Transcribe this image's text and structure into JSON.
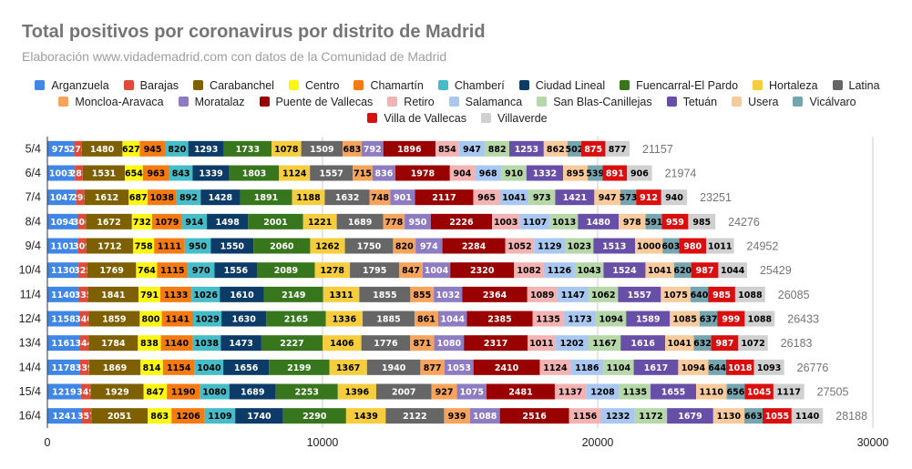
{
  "title": "Total positivos por coronavirus por distrito de Madrid",
  "subtitle": "Elaboración www.vidademadrid.com con datos de la Comunidad de Madrid",
  "chart_data": {
    "type": "bar",
    "orientation": "horizontal",
    "stacked": true,
    "title": "Total positivos por coronavirus por distrito de Madrid",
    "subtitle": "Elaboración www.vidademadrid.com con datos de la Comunidad de Madrid",
    "xlim": [
      0,
      30000
    ],
    "x_ticks": [
      0,
      10000,
      20000,
      30000
    ],
    "grid": true,
    "legend_position": "top",
    "categories": [
      "5/4",
      "6/4",
      "7/4",
      "8/4",
      "9/4",
      "10/4",
      "11/4",
      "12/4",
      "13/4",
      "14/4",
      "15/4",
      "16/4"
    ],
    "totals": [
      21157,
      21974,
      23251,
      24276,
      24952,
      25429,
      26085,
      26433,
      26183,
      26776,
      27505,
      28188
    ],
    "series": [
      {
        "name": "Arganzuela",
        "color": "#3f86e6",
        "label_color": "#ffffff",
        "values": [
          975,
          1003,
          1047,
          1094,
          1101,
          1130,
          1140,
          1158,
          1161,
          1178,
          1219,
          1241
        ]
      },
      {
        "name": "Barajas",
        "color": "#e04a3a",
        "label_color": "#ffffff",
        "values": [
          274,
          283,
          298,
          306,
          309,
          325,
          335,
          340,
          344,
          339,
          349,
          357
        ]
      },
      {
        "name": "Carabanchel",
        "color": "#7f6000",
        "label_color": "#ffffff",
        "values": [
          1480,
          1531,
          1612,
          1672,
          1712,
          1769,
          1841,
          1859,
          1784,
          1869,
          1929,
          2051
        ]
      },
      {
        "name": "Centro",
        "color": "#fbf712",
        "label_color": "#000000",
        "values": [
          627,
          654,
          687,
          732,
          758,
          764,
          791,
          800,
          838,
          814,
          847,
          863
        ]
      },
      {
        "name": "Chamartín",
        "color": "#f57a12",
        "label_color": "#000000",
        "values": [
          945,
          963,
          1038,
          1079,
          1111,
          1115,
          1133,
          1141,
          1140,
          1154,
          1190,
          1206
        ]
      },
      {
        "name": "Chamberí",
        "color": "#45bcc7",
        "label_color": "#000000",
        "values": [
          820,
          843,
          892,
          914,
          950,
          970,
          1026,
          1029,
          1038,
          1040,
          1080,
          1109
        ]
      },
      {
        "name": "Ciudad Lineal",
        "color": "#0b3b66",
        "label_color": "#ffffff",
        "values": [
          1293,
          1339,
          1428,
          1498,
          1550,
          1556,
          1610,
          1630,
          1473,
          1656,
          1689,
          1740
        ]
      },
      {
        "name": "Fuencarral-El Pardo",
        "color": "#38761d",
        "label_color": "#ffffff",
        "values": [
          1733,
          1803,
          1891,
          2001,
          2060,
          2089,
          2149,
          2165,
          2227,
          2199,
          2253,
          2290
        ]
      },
      {
        "name": "Hortaleza",
        "color": "#f5cd3d",
        "label_color": "#000000",
        "values": [
          1078,
          1124,
          1188,
          1221,
          1262,
          1278,
          1311,
          1336,
          1406,
          1367,
          1396,
          1439
        ]
      },
      {
        "name": "Latina",
        "color": "#666666",
        "label_color": "#ffffff",
        "values": [
          1509,
          1557,
          1632,
          1689,
          1750,
          1795,
          1855,
          1885,
          1776,
          1940,
          2007,
          2122
        ]
      },
      {
        "name": "Moncloa-Aravaca",
        "color": "#f6a35c",
        "label_color": "#000000",
        "values": [
          683,
          715,
          748,
          778,
          820,
          847,
          855,
          861,
          871,
          877,
          927,
          939
        ]
      },
      {
        "name": "Moratalaz",
        "color": "#8e7cc3",
        "label_color": "#ffffff",
        "values": [
          792,
          836,
          901,
          950,
          974,
          1004,
          1032,
          1044,
          1080,
          1053,
          1075,
          1088
        ]
      },
      {
        "name": "Puente de Vallecas",
        "color": "#990000",
        "label_color": "#ffffff",
        "values": [
          1896,
          1978,
          2117,
          2226,
          2284,
          2320,
          2364,
          2385,
          2317,
          2410,
          2481,
          2516
        ]
      },
      {
        "name": "Retiro",
        "color": "#f4b3b3",
        "label_color": "#000000",
        "values": [
          854,
          904,
          965,
          1003,
          1052,
          1082,
          1089,
          1135,
          1011,
          1124,
          1137,
          1156
        ]
      },
      {
        "name": "Salamanca",
        "color": "#a9c8f1",
        "label_color": "#000000",
        "values": [
          947,
          968,
          1041,
          1107,
          1129,
          1126,
          1147,
          1173,
          1202,
          1186,
          1208,
          1232
        ]
      },
      {
        "name": "San Blas-Canillejas",
        "color": "#b6d7a8",
        "label_color": "#000000",
        "values": [
          882,
          910,
          973,
          1013,
          1023,
          1043,
          1062,
          1094,
          1167,
          1104,
          1135,
          1172
        ]
      },
      {
        "name": "Tetuán",
        "color": "#674ea7",
        "label_color": "#ffffff",
        "values": [
          1253,
          1332,
          1421,
          1480,
          1513,
          1524,
          1557,
          1589,
          1616,
          1617,
          1655,
          1679
        ]
      },
      {
        "name": "Usera",
        "color": "#f9cb9c",
        "label_color": "#000000",
        "values": [
          862,
          895,
          947,
          978,
          1000,
          1041,
          1075,
          1085,
          1041,
          1094,
          1110,
          1130
        ]
      },
      {
        "name": "Vicálvaro",
        "color": "#76a5af",
        "label_color": "#000000",
        "values": [
          502,
          539,
          573,
          591,
          603,
          620,
          640,
          637,
          632,
          644,
          656,
          663
        ]
      },
      {
        "name": "Villa de Vallecas",
        "color": "#d90f0f",
        "label_color": "#ffffff",
        "values": [
          875,
          891,
          912,
          959,
          980,
          987,
          985,
          999,
          987,
          1018,
          1045,
          1055
        ]
      },
      {
        "name": "Villaverde",
        "color": "#d0d0d0",
        "label_color": "#000000",
        "values": [
          877,
          906,
          940,
          985,
          1011,
          1044,
          1088,
          1088,
          1072,
          1093,
          1117,
          1140
        ]
      }
    ]
  }
}
